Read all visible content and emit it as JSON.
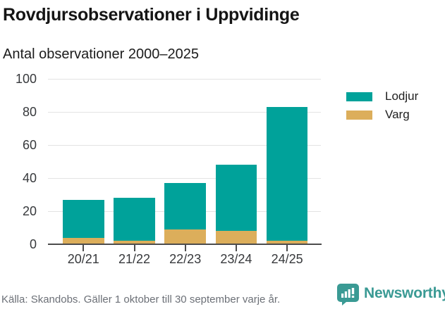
{
  "header": {
    "title": "Rovdjursobservationer i Uppvidinge",
    "subtitle": "Antal observationer 2000–2025"
  },
  "chart_data": {
    "type": "bar",
    "stacked": true,
    "categories": [
      "20/21",
      "21/22",
      "22/23",
      "23/24",
      "24/25"
    ],
    "series": [
      {
        "name": "Lodjur",
        "color": "#00a29a",
        "values": [
          23,
          26,
          28,
          40,
          81
        ]
      },
      {
        "name": "Varg",
        "color": "#dcae5b",
        "values": [
          4,
          2,
          9,
          8,
          2
        ]
      }
    ],
    "stack_bottom_to_top": [
      "Varg",
      "Lodjur"
    ],
    "totals": [
      27,
      28,
      37,
      48,
      83
    ],
    "xlabel": "",
    "ylabel": "",
    "ylim": [
      0,
      100
    ],
    "yticks": [
      0,
      20,
      40,
      60,
      80,
      100
    ],
    "grid": true,
    "legend_position": "right",
    "title": "Rovdjursobservationer i Uppvidinge",
    "subtitle": "Antal observationer 2000–2025"
  },
  "footer": {
    "source": "Källa: Skandobs. Gäller 1 oktober till 30 september varje år.",
    "brand": "Newsworthy",
    "brand_color": "#3a9a94"
  },
  "colors": {
    "lodjur": "#00a29a",
    "varg": "#dcae5b",
    "axis": "#4c4c4c",
    "gridline": "#e3e3e3",
    "title_text": "#151515",
    "tick_text": "#37393c",
    "source_text": "#6c7077"
  }
}
